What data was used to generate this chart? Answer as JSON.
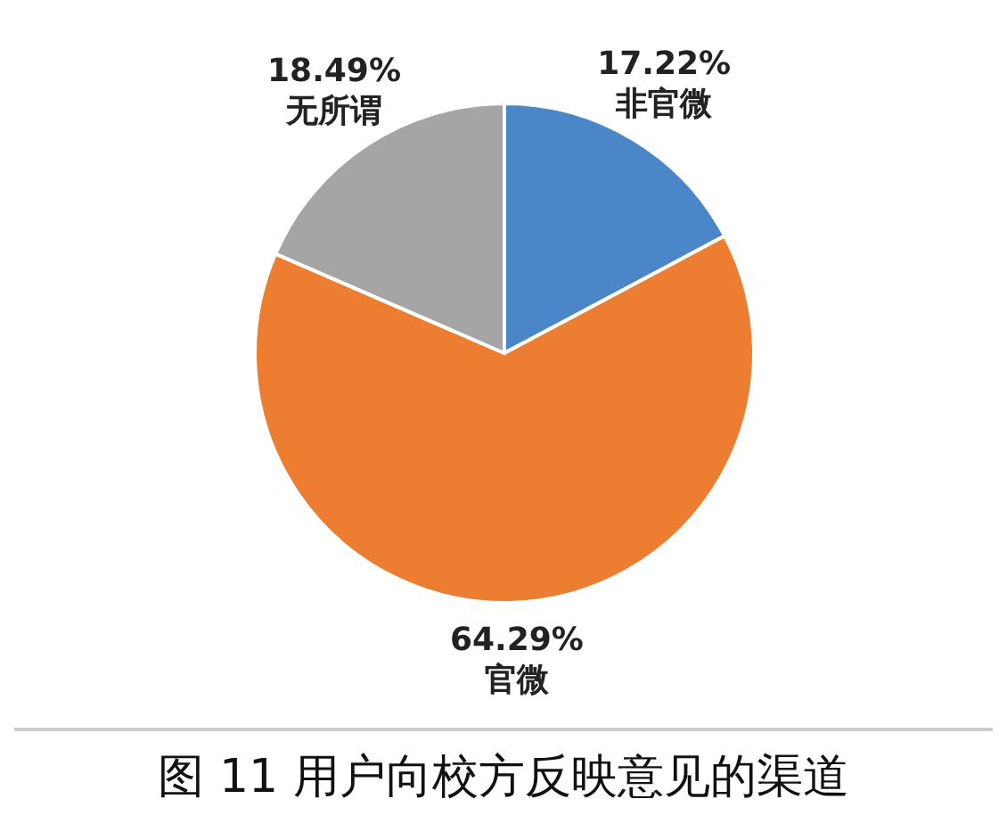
{
  "chart_data": {
    "type": "pie",
    "title": "图 11 用户向校方反映意见的渠道",
    "categories": [
      "非官微",
      "官微",
      "无所谓"
    ],
    "values": [
      17.22,
      64.29,
      18.49
    ],
    "value_labels": [
      "17.22%",
      "64.29%",
      "18.49%"
    ],
    "colors": [
      "#4a86c8",
      "#ed7d31",
      "#a5a5a5"
    ],
    "legend": false
  }
}
